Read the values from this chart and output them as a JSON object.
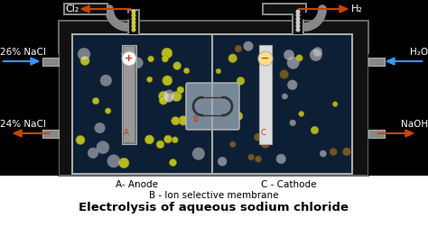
{
  "title": "Electrolysis of aqueous sodium chloride",
  "bg_color": "#000000",
  "tank_bg": "#0d1f35",
  "tank_border": "#aaaaaa",
  "left_labels": [
    "26% NaCl",
    "24% NaCl"
  ],
  "right_labels": [
    "H₂O",
    "NaOH"
  ],
  "top_left_label": "Cl₂",
  "top_right_label": "H₂",
  "blue_arrow_color": "#3399ff",
  "orange_arrow_color": "#cc4400",
  "subtitle1": "A- Anode",
  "subtitle2": "C - Cathode",
  "subtitle3": "B - Ion selective membrane",
  "white_bg": "#ffffff"
}
